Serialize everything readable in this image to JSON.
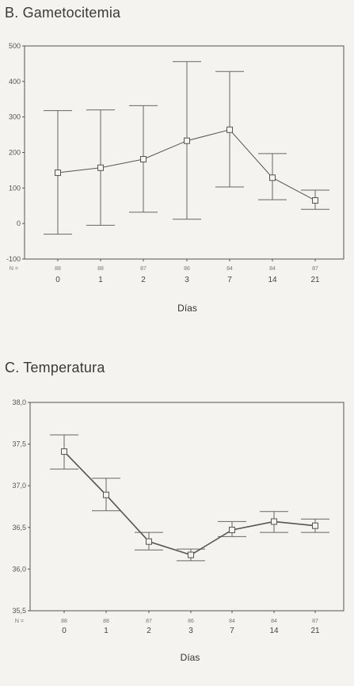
{
  "chart_data": [
    {
      "type": "line",
      "title": "B. Gametocitemia",
      "xlabel": "Días",
      "ylabel": "",
      "ylim": [
        -100,
        500
      ],
      "yticks": [
        "500",
        "400",
        "300",
        "200",
        "100",
        "0",
        "-100"
      ],
      "ytick_values": [
        500,
        400,
        300,
        200,
        100,
        0,
        -100
      ],
      "n_prefix": "N =",
      "categories": [
        "0",
        "1",
        "2",
        "3",
        "7",
        "14",
        "21"
      ],
      "n": [
        "88",
        "88",
        "87",
        "86",
        "84",
        "84",
        "87"
      ],
      "series": [
        {
          "values": [
            143,
            157,
            181,
            233,
            264,
            129,
            65
          ],
          "error_low": [
            -30,
            -5,
            32,
            12,
            103,
            67,
            40
          ],
          "error_high": [
            318,
            320,
            332,
            456,
            428,
            197,
            94
          ]
        }
      ],
      "grid": false
    },
    {
      "type": "line",
      "title": "C. Temperatura",
      "xlabel": "Días",
      "ylabel": "",
      "ylim": [
        35.5,
        38.0
      ],
      "yticks": [
        "38,0",
        "37,5",
        "37,0",
        "36,5",
        "36,0",
        "35,5"
      ],
      "ytick_values": [
        38.0,
        37.5,
        37.0,
        36.5,
        36.0,
        35.5
      ],
      "n_prefix": "N =",
      "categories": [
        "0",
        "1",
        "2",
        "3",
        "7",
        "14",
        "21"
      ],
      "n": [
        "88",
        "88",
        "87",
        "86",
        "84",
        "84",
        "87"
      ],
      "series": [
        {
          "values": [
            37.41,
            36.89,
            36.33,
            36.17,
            36.47,
            36.57,
            36.52
          ],
          "error_low": [
            37.2,
            36.7,
            36.23,
            36.1,
            36.39,
            36.44,
            36.44
          ],
          "error_high": [
            37.61,
            37.09,
            36.44,
            36.24,
            36.57,
            36.69,
            36.6
          ]
        }
      ],
      "grid": false
    }
  ]
}
